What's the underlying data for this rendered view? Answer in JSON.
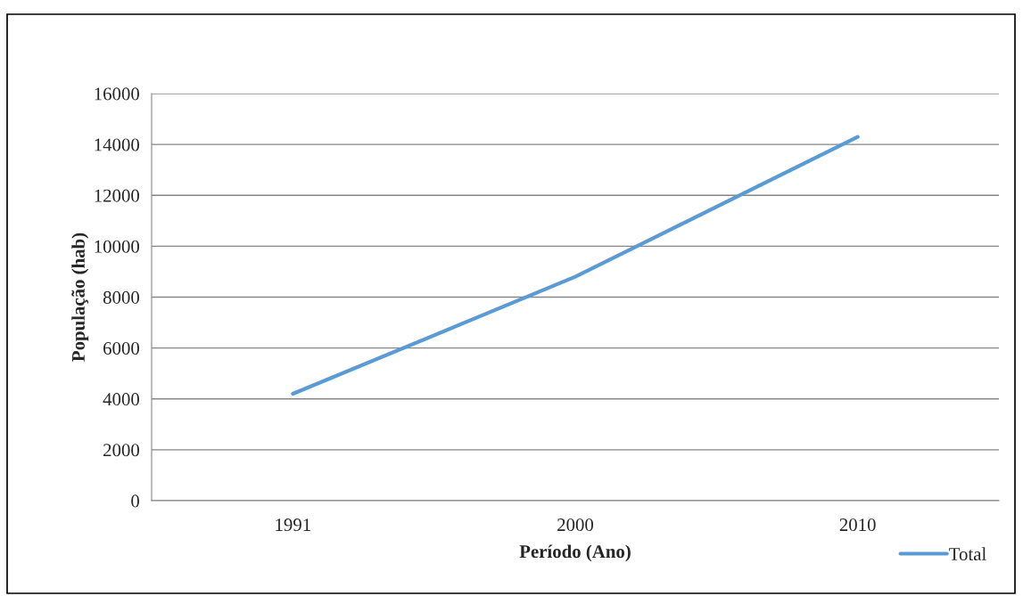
{
  "chart_data": {
    "type": "line",
    "xlabel": "Período (Ano)",
    "ylabel": "População (hab)",
    "categories": [
      "1991",
      "2000",
      "2010"
    ],
    "series": [
      {
        "name": "Total",
        "color": "#5b9bd5",
        "values": [
          4200,
          8800,
          14300
        ]
      }
    ],
    "ylim": [
      0,
      16000
    ],
    "yticks": [
      0,
      2000,
      4000,
      6000,
      8000,
      10000,
      12000,
      14000,
      16000
    ],
    "grid": "y",
    "legend": "bottom right",
    "marker": "none"
  }
}
